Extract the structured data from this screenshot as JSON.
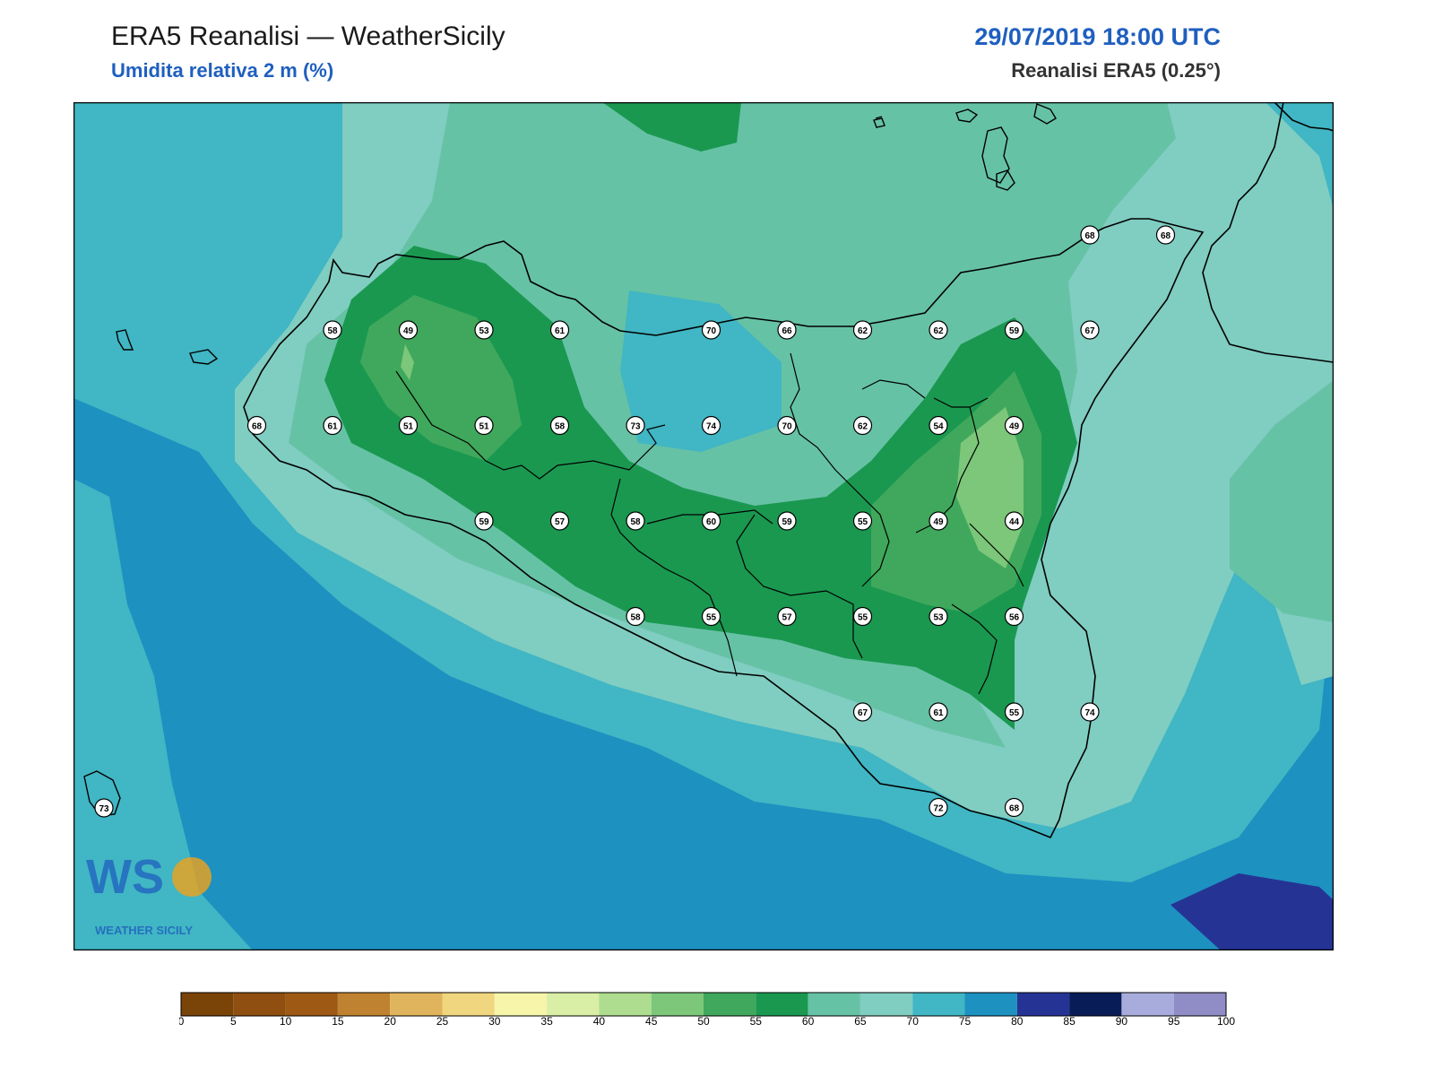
{
  "header": {
    "title": "ERA5 Reanalisi — WeatherSicily",
    "subtitle": "Umidita relativa 2 m (%)",
    "datetime": "29/07/2019 18:00 UTC",
    "source": "Reanalisi ERA5 (0.25°)"
  },
  "logo": {
    "text": "WEATHER SICILY",
    "icon": "weathersicily-logo"
  },
  "colors": {
    "land_outline": "#000000",
    "frame": "#000000",
    "station_marker": "#ffffff"
  },
  "colorbar": {
    "ticks": [
      "0",
      "5",
      "10",
      "15",
      "20",
      "25",
      "30",
      "35",
      "40",
      "45",
      "50",
      "55",
      "60",
      "65",
      "70",
      "75",
      "80",
      "85",
      "90",
      "95",
      "100"
    ],
    "colors": [
      "#7a4307",
      "#8e4f10",
      "#9e5a14",
      "#bf8230",
      "#e0b45c",
      "#f0d67e",
      "#f6f5aa",
      "#d9efa6",
      "#aedd8f",
      "#7cc77a",
      "#40a85c",
      "#1a9850",
      "#66c2a5",
      "#80cdc1",
      "#41b6c4",
      "#1d91c0",
      "#253494",
      "#081d58",
      "#a8acdc",
      "#8f8cc6"
    ]
  },
  "stations": [
    {
      "label": "58",
      "row": 0,
      "col": 3
    },
    {
      "label": "49",
      "row": 0,
      "col": 4
    },
    {
      "label": "53",
      "row": 0,
      "col": 5
    },
    {
      "label": "61",
      "row": 0,
      "col": 6
    },
    {
      "label": "70",
      "row": 0,
      "col": 8
    },
    {
      "label": "66",
      "row": 0,
      "col": 9
    },
    {
      "label": "62",
      "row": 0,
      "col": 10
    },
    {
      "label": "62",
      "row": 0,
      "col": 11
    },
    {
      "label": "59",
      "row": 0,
      "col": 12
    },
    {
      "label": "67",
      "row": 0,
      "col": 13
    },
    {
      "label": "68",
      "row": 1,
      "col": 2
    },
    {
      "label": "61",
      "row": 1,
      "col": 3
    },
    {
      "label": "51",
      "row": 1,
      "col": 4
    },
    {
      "label": "51",
      "row": 1,
      "col": 5
    },
    {
      "label": "58",
      "row": 1,
      "col": 6
    },
    {
      "label": "73",
      "row": 1,
      "col": 7
    },
    {
      "label": "74",
      "row": 1,
      "col": 8
    },
    {
      "label": "70",
      "row": 1,
      "col": 9
    },
    {
      "label": "62",
      "row": 1,
      "col": 10
    },
    {
      "label": "54",
      "row": 1,
      "col": 11
    },
    {
      "label": "49",
      "row": 1,
      "col": 12
    },
    {
      "label": "59",
      "row": 2,
      "col": 5
    },
    {
      "label": "57",
      "row": 2,
      "col": 6
    },
    {
      "label": "58",
      "row": 2,
      "col": 7
    },
    {
      "label": "60",
      "row": 2,
      "col": 8
    },
    {
      "label": "59",
      "row": 2,
      "col": 9
    },
    {
      "label": "55",
      "row": 2,
      "col": 10
    },
    {
      "label": "49",
      "row": 2,
      "col": 11
    },
    {
      "label": "44",
      "row": 2,
      "col": 12
    },
    {
      "label": "58",
      "row": 3,
      "col": 7
    },
    {
      "label": "55",
      "row": 3,
      "col": 8
    },
    {
      "label": "57",
      "row": 3,
      "col": 9
    },
    {
      "label": "55",
      "row": 3,
      "col": 10
    },
    {
      "label": "53",
      "row": 3,
      "col": 11
    },
    {
      "label": "56",
      "row": 3,
      "col": 12
    },
    {
      "label": "67",
      "row": 4,
      "col": 10
    },
    {
      "label": "61",
      "row": 4,
      "col": 11
    },
    {
      "label": "55",
      "row": 4,
      "col": 12
    },
    {
      "label": "74",
      "row": 4,
      "col": 13
    },
    {
      "label": "72",
      "row": 5,
      "col": 11
    },
    {
      "label": "68",
      "row": 5,
      "col": 12
    },
    {
      "label": "73",
      "row": 5,
      "col": 0
    },
    {
      "label": "68",
      "row": -1,
      "col": 13
    },
    {
      "label": "68",
      "row": -1,
      "col": 14
    }
  ]
}
